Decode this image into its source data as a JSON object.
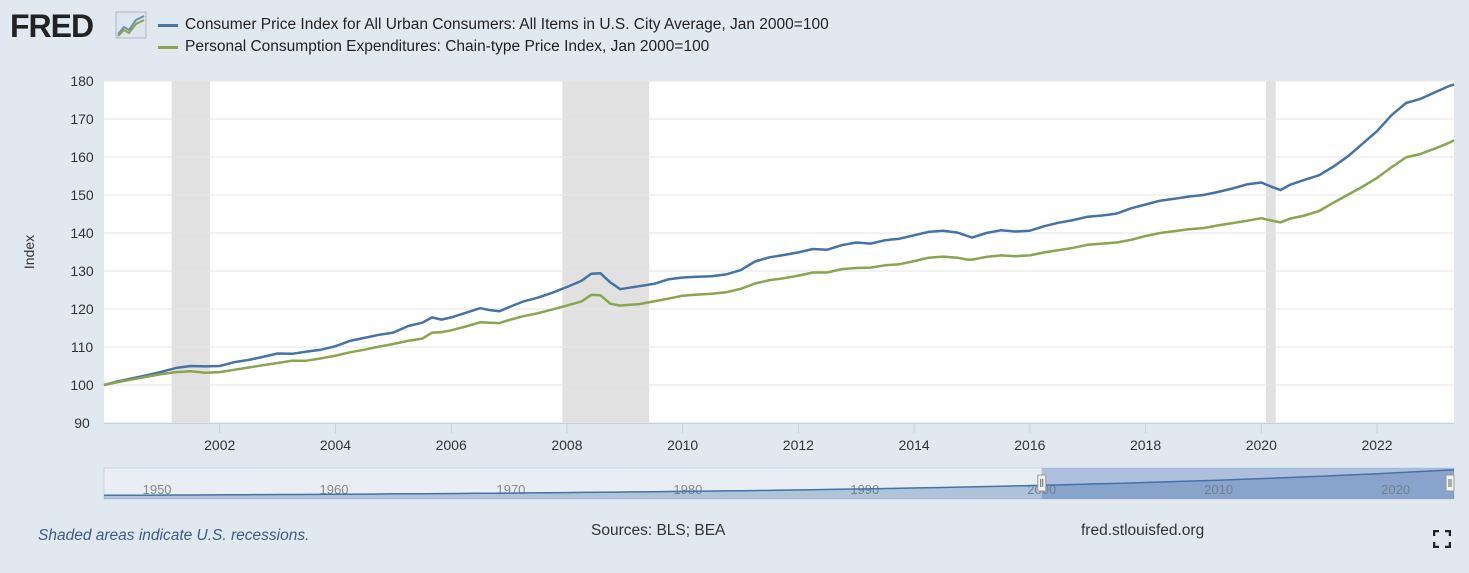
{
  "logo": {
    "text": "FRED",
    "icon": "fred-logo-chart-icon"
  },
  "colors": {
    "cpi": "#4572a7",
    "pce": "#89a54e",
    "recession": "#e1e1e1",
    "background": "#e1e9f0",
    "navigator": "#4572a7"
  },
  "legend": [
    {
      "label": "Consumer Price Index for All Urban Consumers: All Items in U.S. City Average, Jan 2000=100",
      "color": "#4572a7"
    },
    {
      "label": "Personal Consumption Expenditures: Chain-type Price Index, Jan 2000=100",
      "color": "#89a54e"
    }
  ],
  "footer": {
    "recession_note": "Shaded areas indicate U.S. recessions.",
    "sources": "Sources: BLS; BEA",
    "site": "fred.stlouisfed.org",
    "fullscreen_icon": "fullscreen-icon"
  },
  "navigator": {
    "tick_labels": [
      "1950",
      "1960",
      "1970",
      "1980",
      "1990",
      "2000",
      "2010",
      "2020"
    ]
  },
  "chart_data": {
    "type": "line",
    "ylabel": "Index",
    "xlabel": "",
    "ylim": [
      90,
      180
    ],
    "y_ticks": [
      90,
      100,
      110,
      120,
      130,
      140,
      150,
      160,
      170,
      180
    ],
    "xlim": [
      2000.0,
      2023.33
    ],
    "x_ticks": [
      "2002",
      "2004",
      "2006",
      "2008",
      "2010",
      "2012",
      "2014",
      "2016",
      "2018",
      "2020",
      "2022"
    ],
    "grid": true,
    "legend_position": "top",
    "recessions": [
      [
        2001.17,
        2001.83
      ],
      [
        2007.92,
        2009.42
      ],
      [
        2020.08,
        2020.25
      ]
    ],
    "series": [
      {
        "name": "Consumer Price Index for All Urban Consumers: All Items in U.S. City Average, Jan 2000=100",
        "color": "#4572a7",
        "x": [
          2000.0,
          2000.25,
          2000.5,
          2000.75,
          2001.0,
          2001.25,
          2001.5,
          2001.75,
          2002.0,
          2002.25,
          2002.5,
          2002.75,
          2003.0,
          2003.25,
          2003.5,
          2003.75,
          2004.0,
          2004.25,
          2004.5,
          2004.75,
          2005.0,
          2005.25,
          2005.5,
          2005.67,
          2005.83,
          2006.0,
          2006.25,
          2006.5,
          2006.67,
          2006.83,
          2007.0,
          2007.25,
          2007.5,
          2007.75,
          2008.0,
          2008.25,
          2008.42,
          2008.58,
          2008.75,
          2008.92,
          2009.08,
          2009.25,
          2009.5,
          2009.75,
          2010.0,
          2010.25,
          2010.5,
          2010.75,
          2011.0,
          2011.25,
          2011.5,
          2011.75,
          2012.0,
          2012.25,
          2012.5,
          2012.75,
          2013.0,
          2013.25,
          2013.5,
          2013.75,
          2014.0,
          2014.25,
          2014.5,
          2014.75,
          2014.92,
          2015.0,
          2015.25,
          2015.5,
          2015.75,
          2016.0,
          2016.25,
          2016.5,
          2016.75,
          2017.0,
          2017.25,
          2017.5,
          2017.75,
          2018.0,
          2018.25,
          2018.5,
          2018.75,
          2019.0,
          2019.25,
          2019.5,
          2019.75,
          2020.0,
          2020.17,
          2020.33,
          2020.5,
          2020.75,
          2021.0,
          2021.25,
          2021.5,
          2021.75,
          2022.0,
          2022.25,
          2022.5,
          2022.75,
          2023.0,
          2023.25,
          2023.33
        ],
        "values": [
          100.0,
          101.0,
          101.8,
          102.6,
          103.5,
          104.5,
          105.0,
          104.9,
          105.0,
          106.0,
          106.6,
          107.4,
          108.3,
          108.2,
          108.8,
          109.3,
          110.2,
          111.6,
          112.4,
          113.2,
          113.8,
          115.5,
          116.4,
          117.8,
          117.2,
          117.8,
          119.0,
          120.2,
          119.7,
          119.4,
          120.5,
          122.0,
          123.0,
          124.3,
          125.8,
          127.4,
          129.3,
          129.4,
          127.0,
          125.2,
          125.6,
          126.0,
          126.6,
          127.8,
          128.3,
          128.5,
          128.6,
          129.1,
          130.2,
          132.5,
          133.6,
          134.2,
          134.9,
          135.8,
          135.6,
          136.8,
          137.5,
          137.2,
          138.1,
          138.5,
          139.4,
          140.3,
          140.6,
          140.1,
          139.2,
          138.8,
          140.0,
          140.7,
          140.4,
          140.6,
          141.8,
          142.7,
          143.4,
          144.3,
          144.6,
          145.1,
          146.5,
          147.5,
          148.5,
          149.0,
          149.6,
          150.0,
          150.8,
          151.7,
          152.8,
          153.3,
          152.2,
          151.3,
          152.7,
          154.0,
          155.2,
          157.5,
          160.2,
          163.5,
          166.8,
          171.0,
          174.2,
          175.3,
          177.0,
          178.7,
          179.1
        ]
      },
      {
        "name": "Personal Consumption Expenditures: Chain-type Price Index, Jan 2000=100",
        "color": "#89a54e",
        "x": [
          2000.0,
          2000.25,
          2000.5,
          2000.75,
          2001.0,
          2001.25,
          2001.5,
          2001.75,
          2002.0,
          2002.25,
          2002.5,
          2002.75,
          2003.0,
          2003.25,
          2003.5,
          2003.75,
          2004.0,
          2004.25,
          2004.5,
          2004.75,
          2005.0,
          2005.25,
          2005.5,
          2005.67,
          2005.83,
          2006.0,
          2006.25,
          2006.5,
          2006.67,
          2006.83,
          2007.0,
          2007.25,
          2007.5,
          2007.75,
          2008.0,
          2008.25,
          2008.42,
          2008.58,
          2008.75,
          2008.92,
          2009.08,
          2009.25,
          2009.5,
          2009.75,
          2010.0,
          2010.25,
          2010.5,
          2010.75,
          2011.0,
          2011.25,
          2011.5,
          2011.75,
          2012.0,
          2012.25,
          2012.5,
          2012.75,
          2013.0,
          2013.25,
          2013.5,
          2013.75,
          2014.0,
          2014.25,
          2014.5,
          2014.75,
          2014.92,
          2015.0,
          2015.25,
          2015.5,
          2015.75,
          2016.0,
          2016.25,
          2016.5,
          2016.75,
          2017.0,
          2017.25,
          2017.5,
          2017.75,
          2018.0,
          2018.25,
          2018.5,
          2018.75,
          2019.0,
          2019.25,
          2019.5,
          2019.75,
          2020.0,
          2020.17,
          2020.33,
          2020.5,
          2020.75,
          2021.0,
          2021.25,
          2021.5,
          2021.75,
          2022.0,
          2022.25,
          2022.5,
          2022.75,
          2023.0,
          2023.25,
          2023.33
        ],
        "values": [
          100.0,
          100.8,
          101.5,
          102.2,
          102.9,
          103.4,
          103.6,
          103.2,
          103.4,
          104.0,
          104.6,
          105.2,
          105.8,
          106.4,
          106.4,
          107.0,
          107.7,
          108.6,
          109.3,
          110.1,
          110.8,
          111.6,
          112.2,
          113.8,
          113.9,
          114.4,
          115.4,
          116.5,
          116.4,
          116.3,
          117.1,
          118.1,
          118.9,
          119.9,
          120.9,
          122.0,
          123.7,
          123.6,
          121.4,
          120.9,
          121.1,
          121.3,
          122.0,
          122.7,
          123.5,
          123.8,
          124.0,
          124.4,
          125.3,
          126.7,
          127.6,
          128.1,
          128.8,
          129.6,
          129.6,
          130.5,
          130.8,
          130.9,
          131.5,
          131.8,
          132.6,
          133.5,
          133.8,
          133.5,
          133.0,
          133.0,
          133.7,
          134.1,
          133.9,
          134.1,
          134.9,
          135.5,
          136.1,
          136.9,
          137.2,
          137.5,
          138.2,
          139.2,
          140.0,
          140.5,
          141.0,
          141.3,
          142.0,
          142.6,
          143.2,
          143.9,
          143.3,
          142.8,
          143.8,
          144.6,
          145.8,
          148.0,
          150.1,
          152.2,
          154.5,
          157.3,
          159.9,
          160.8,
          162.2,
          163.8,
          164.4
        ]
      }
    ]
  }
}
